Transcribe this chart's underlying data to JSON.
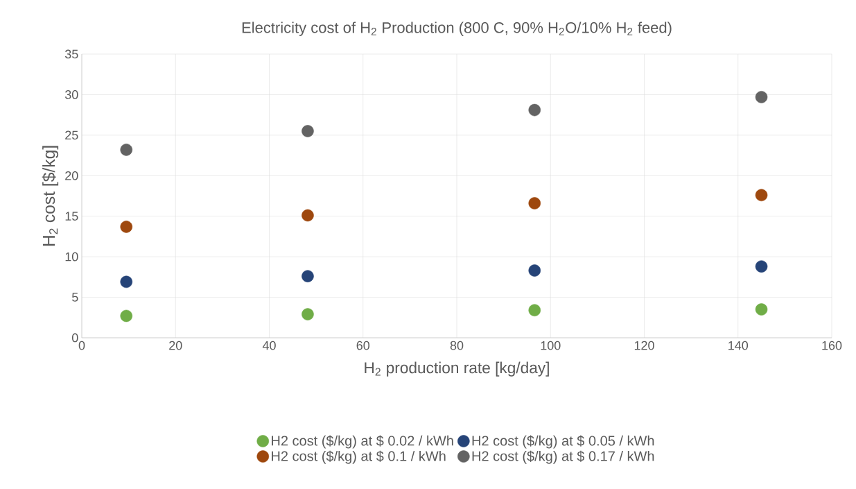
{
  "chart_data": {
    "type": "scatter",
    "title": "Electricity cost of H$_{2}$ Production (800 C, 90% H$_{2}$O/10% H$_{2}$ feed)",
    "xlabel": "H$_{2}$ production rate [kg/day]",
    "ylabel": "H$_{2}$ cost [$/kg]",
    "x": [
      9.5,
      48.2,
      96.6,
      145
    ],
    "series": [
      {
        "name": "H2 cost ($/kg) at $ 0.02 / kWh",
        "color": "#70ad47",
        "values": [
          2.7,
          2.9,
          3.4,
          3.5
        ]
      },
      {
        "name": "H2 cost ($/kg) at $ 0.05 / kWh",
        "color": "#264478",
        "values": [
          6.9,
          7.6,
          8.3,
          8.8
        ]
      },
      {
        "name": "H2 cost ($/kg) at $ 0.1 / kWh",
        "color": "#9e480e",
        "values": [
          13.7,
          15.1,
          16.6,
          17.6
        ]
      },
      {
        "name": "H2 cost ($/kg) at $ 0.17 / kWh",
        "color": "#636363",
        "values": [
          23.2,
          25.5,
          28.1,
          29.7
        ]
      }
    ],
    "xlim": [
      0,
      160
    ],
    "xticks": [
      0,
      20,
      40,
      60,
      80,
      100,
      120,
      140,
      160
    ],
    "ylim": [
      0,
      35
    ],
    "yticks": [
      0,
      5,
      10,
      15,
      20,
      25,
      30,
      35
    ],
    "grid": true,
    "legend": "bottom",
    "marker": "circle"
  }
}
